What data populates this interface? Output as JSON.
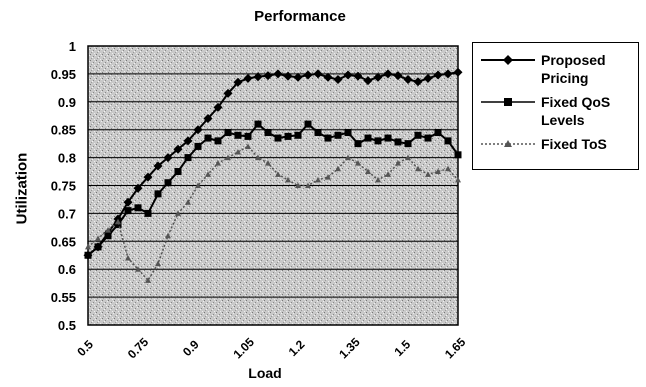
{
  "chart_data": {
    "type": "line",
    "title": "Performance",
    "xlabel": "Load",
    "ylabel": "Utilization",
    "ylim": [
      0.5,
      1
    ],
    "yticks": [
      "1",
      "0.95",
      "0.9",
      "0.85",
      "0.8",
      "0.75",
      "0.7",
      "0.65",
      "0.6",
      "0.55",
      "0.5"
    ],
    "xticks": [
      "0.5",
      "0.75",
      "0.9",
      "1.05",
      "1.2",
      "1.35",
      "1.5",
      "1.65"
    ],
    "grid": true,
    "legend_position": "right",
    "series": [
      {
        "name": "Proposed Pricing",
        "color": "#000000",
        "marker": "diamond",
        "style": "solid",
        "values": [
          0.625,
          0.64,
          0.665,
          0.69,
          0.72,
          0.745,
          0.765,
          0.785,
          0.8,
          0.815,
          0.83,
          0.85,
          0.87,
          0.89,
          0.915,
          0.935,
          0.942,
          0.945,
          0.947,
          0.95,
          0.946,
          0.944,
          0.948,
          0.95,
          0.944,
          0.94,
          0.948,
          0.946,
          0.938,
          0.944,
          0.95,
          0.947,
          0.94,
          0.936,
          0.942,
          0.948,
          0.95,
          0.953
        ]
      },
      {
        "name": "Fixed QoS Levels",
        "color": "#000000",
        "marker": "square",
        "style": "solid",
        "values": [
          0.625,
          0.64,
          0.66,
          0.68,
          0.705,
          0.71,
          0.7,
          0.735,
          0.755,
          0.775,
          0.8,
          0.82,
          0.835,
          0.83,
          0.845,
          0.84,
          0.838,
          0.86,
          0.845,
          0.835,
          0.838,
          0.84,
          0.86,
          0.845,
          0.835,
          0.84,
          0.845,
          0.825,
          0.835,
          0.83,
          0.835,
          0.828,
          0.825,
          0.84,
          0.835,
          0.845,
          0.83,
          0.805
        ]
      },
      {
        "name": "Fixed ToS",
        "color": "#555555",
        "marker": "triangle",
        "style": "dotted",
        "values": [
          0.64,
          0.655,
          0.67,
          0.685,
          0.62,
          0.6,
          0.58,
          0.61,
          0.66,
          0.7,
          0.72,
          0.75,
          0.77,
          0.79,
          0.8,
          0.81,
          0.82,
          0.8,
          0.79,
          0.77,
          0.76,
          0.75,
          0.75,
          0.76,
          0.765,
          0.78,
          0.8,
          0.79,
          0.775,
          0.76,
          0.77,
          0.79,
          0.8,
          0.78,
          0.77,
          0.775,
          0.78,
          0.76
        ]
      }
    ]
  }
}
